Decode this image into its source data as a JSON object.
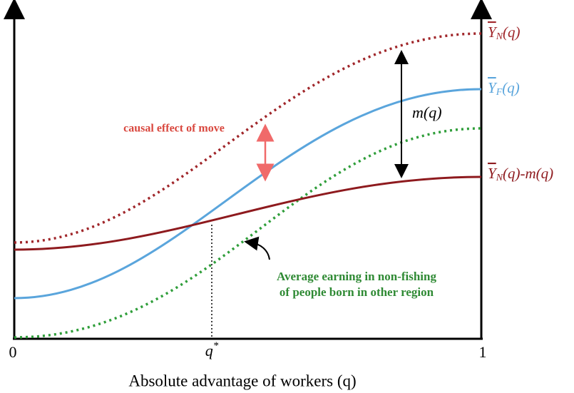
{
  "axes": {
    "x_start": "0",
    "x_mark": {
      "symbol": "q",
      "superscript": "*"
    },
    "x_end": "1",
    "x_label": "Absolute advantage of workers (q)"
  },
  "curve_labels": {
    "yn": {
      "symbol": "Y",
      "subscript": "N",
      "argument": "(q)"
    },
    "yf": {
      "symbol": "Y",
      "subscript": "F",
      "argument": "(q)"
    },
    "ynm": {
      "symbol": "Y",
      "subscript": "N",
      "argument": "(q)-m(q)"
    }
  },
  "annotations": {
    "gap": {
      "symbol": "m",
      "argument": "(q)"
    },
    "causal": "causal effect of move",
    "green_lines": [
      "Average earning in non-fishing",
      "of people born in other region"
    ]
  }
}
